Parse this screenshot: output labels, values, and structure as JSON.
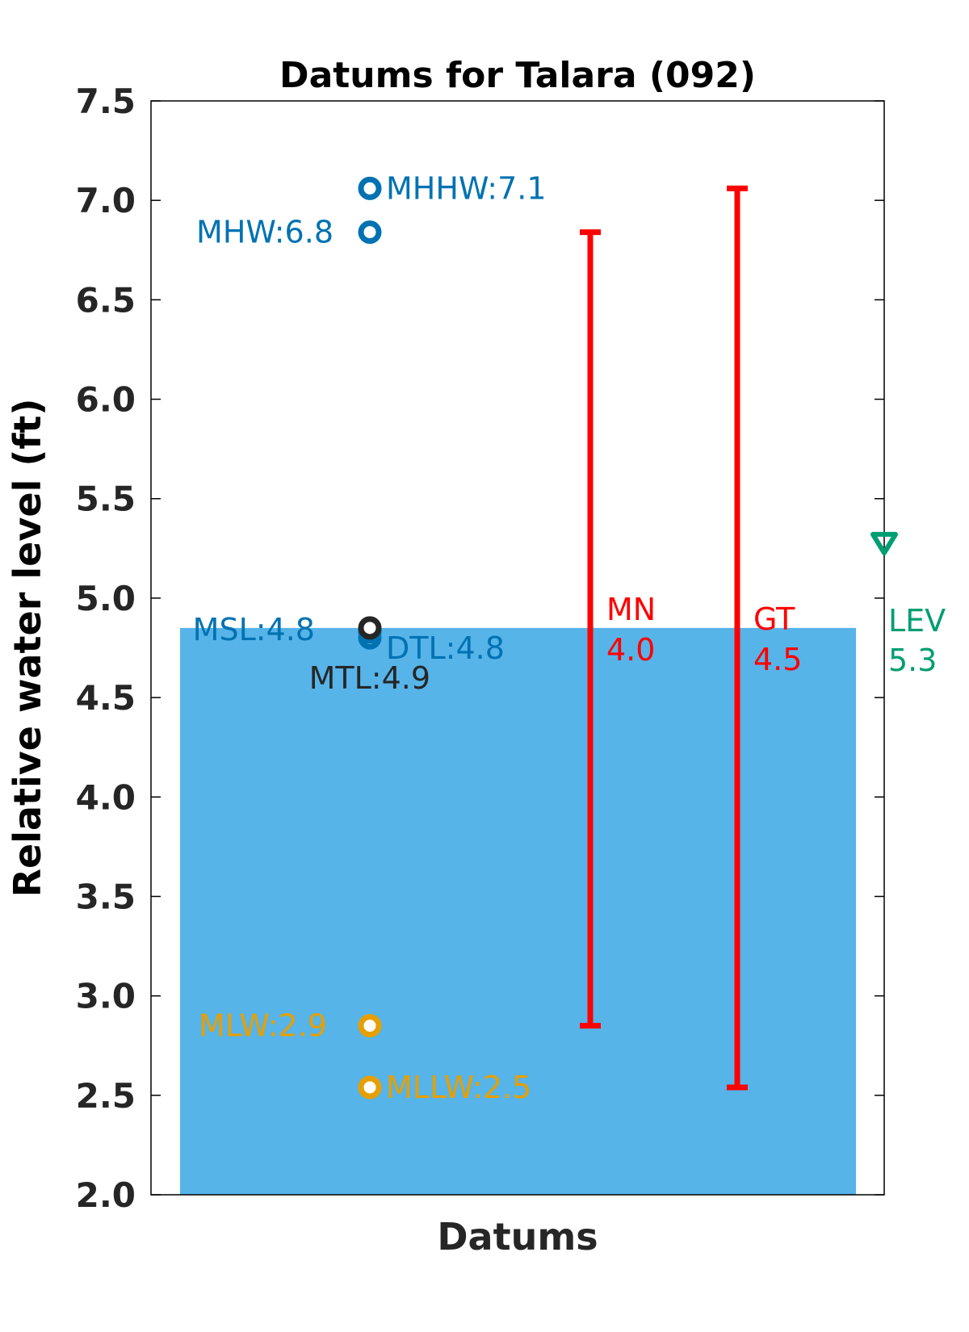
{
  "chart_data": {
    "type": "scatter",
    "title": "Datums for Talara (092)",
    "xlabel": "Datums",
    "ylabel": "Relative water level (ft)",
    "ylim": [
      2.0,
      7.5
    ],
    "yticks": [
      "2.0",
      "2.5",
      "3.0",
      "3.5",
      "4.0",
      "4.5",
      "5.0",
      "5.5",
      "6.0",
      "6.5",
      "7.0",
      "7.5"
    ],
    "grid": false,
    "background_fill": {
      "from": 2.0,
      "to": 4.85,
      "color": "#56B4E9"
    },
    "points": [
      {
        "name": "MHHW",
        "value": 7.06,
        "label": "MHHW:7.1",
        "color": "#0072B2"
      },
      {
        "name": "MHW",
        "value": 6.84,
        "label": "MHW:6.8",
        "color": "#0072B2"
      },
      {
        "name": "MSL",
        "value": 4.83,
        "label": "MSL:4.8",
        "color": "#0072B2"
      },
      {
        "name": "DTL",
        "value": 4.8,
        "label": "DTL:4.8",
        "color": "#0072B2"
      },
      {
        "name": "MTL",
        "value": 4.85,
        "label": "MTL:4.9",
        "color": "#262626"
      },
      {
        "name": "MLW",
        "value": 2.85,
        "label": "MLW:2.9",
        "color": "#E69F00"
      },
      {
        "name": "MLLW",
        "value": 2.54,
        "label": "MLLW:2.5",
        "color": "#E69F00"
      }
    ],
    "ranges": [
      {
        "name": "MN",
        "low": 2.85,
        "high": 6.84,
        "label_name": "MN",
        "label_value": "4.0",
        "color": "#FF0000"
      },
      {
        "name": "GT",
        "low": 2.54,
        "high": 7.06,
        "label_name": "GT",
        "label_value": "4.5",
        "color": "#FF0000"
      }
    ],
    "marker": {
      "name": "LEV",
      "value": 5.28,
      "label_name": "LEV",
      "label_value": "5.3",
      "color": "#009E73"
    }
  }
}
